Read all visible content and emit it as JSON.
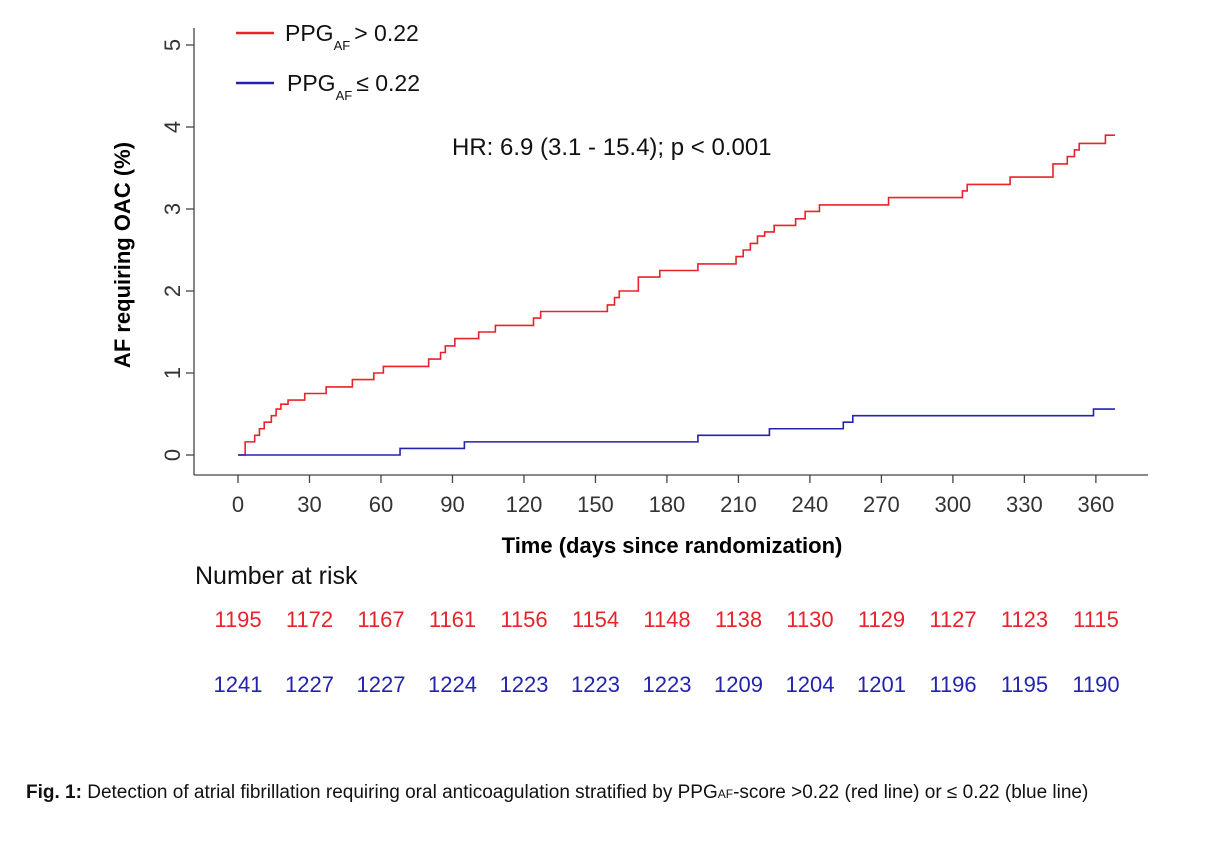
{
  "chart_data": {
    "type": "line",
    "title": "",
    "xlabel": "Time (days since randomization)",
    "ylabel": "AF requiring OAC (%)",
    "xlim": [
      0,
      365
    ],
    "ylim": [
      0,
      5
    ],
    "xticks": [
      "0",
      "30",
      "60",
      "90",
      "120",
      "150",
      "180",
      "210",
      "240",
      "270",
      "300",
      "330",
      "360"
    ],
    "yticks": [
      "0",
      "1",
      "2",
      "3",
      "4",
      "5"
    ],
    "legend_position": "top-left",
    "annotation": "HR: 6.9 (3.1 - 15.4); p < 0.001",
    "series": [
      {
        "name_main": "PPG",
        "name_sub": "AF",
        "name_rest": "> 0.22",
        "color": "#e8232a",
        "step": true,
        "points": [
          [
            0,
            0
          ],
          [
            3,
            0.16
          ],
          [
            7,
            0.24
          ],
          [
            9,
            0.32
          ],
          [
            11,
            0.4
          ],
          [
            14,
            0.48
          ],
          [
            16,
            0.56
          ],
          [
            18,
            0.62
          ],
          [
            21,
            0.67
          ],
          [
            28,
            0.75
          ],
          [
            37,
            0.83
          ],
          [
            48,
            0.92
          ],
          [
            57,
            1.0
          ],
          [
            61,
            1.08
          ],
          [
            80,
            1.17
          ],
          [
            85,
            1.25
          ],
          [
            87,
            1.33
          ],
          [
            91,
            1.42
          ],
          [
            101,
            1.5
          ],
          [
            108,
            1.58
          ],
          [
            124,
            1.67
          ],
          [
            127,
            1.75
          ],
          [
            155,
            1.83
          ],
          [
            158,
            1.92
          ],
          [
            160,
            2.0
          ],
          [
            168,
            2.17
          ],
          [
            177,
            2.25
          ],
          [
            193,
            2.33
          ],
          [
            209,
            2.42
          ],
          [
            212,
            2.5
          ],
          [
            215,
            2.58
          ],
          [
            218,
            2.67
          ],
          [
            221,
            2.72
          ],
          [
            225,
            2.8
          ],
          [
            234,
            2.88
          ],
          [
            238,
            2.97
          ],
          [
            244,
            3.05
          ],
          [
            273,
            3.14
          ],
          [
            304,
            3.22
          ],
          [
            306,
            3.3
          ],
          [
            324,
            3.39
          ],
          [
            342,
            3.55
          ],
          [
            348,
            3.64
          ],
          [
            351,
            3.72
          ],
          [
            353,
            3.8
          ],
          [
            364,
            3.9
          ],
          [
            368,
            3.9
          ]
        ]
      },
      {
        "name_main": "PPG",
        "name_sub": "AF",
        "name_rest": "≤ 0.22",
        "color": "#2323b0",
        "step": true,
        "points": [
          [
            0,
            0
          ],
          [
            68,
            0.08
          ],
          [
            95,
            0.16
          ],
          [
            193,
            0.24
          ],
          [
            223,
            0.32
          ],
          [
            254,
            0.4
          ],
          [
            258,
            0.48
          ],
          [
            359,
            0.56
          ],
          [
            368,
            0.56
          ]
        ]
      }
    ]
  },
  "risk_table": {
    "title": "Number at risk",
    "rows": [
      {
        "color": "#e8232a",
        "values": [
          "1195",
          "1172",
          "1167",
          "1161",
          "1156",
          "1154",
          "1148",
          "1138",
          "1130",
          "1129",
          "1127",
          "1123",
          "1115"
        ]
      },
      {
        "color": "#2323b0",
        "values": [
          "1241",
          "1227",
          "1227",
          "1224",
          "1223",
          "1223",
          "1223",
          "1209",
          "1204",
          "1201",
          "1196",
          "1195",
          "1190"
        ]
      }
    ]
  },
  "caption": {
    "label": "Fig. 1:",
    "text_1": " Detection of atrial fibrillation requiring oral anticoagulation stratified by PPG",
    "sub": "AF",
    "text_2": "-score >0.22 (red line) or ≤ 0.22 (blue line)"
  }
}
